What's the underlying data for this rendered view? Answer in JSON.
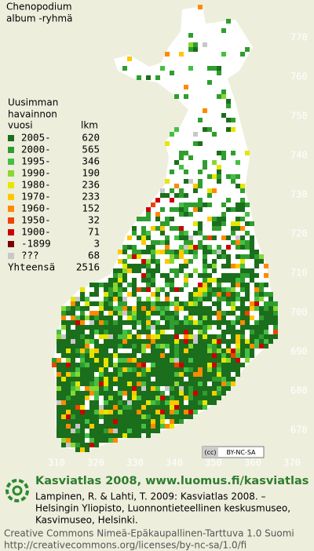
{
  "title": [
    "Chenopodium",
    "album -ryhmä"
  ],
  "legend": {
    "heading": [
      "Uusimman",
      "havainnon",
      "vuosi",
      "lkm"
    ],
    "rows": [
      {
        "period": "2005-",
        "count": 620,
        "color": "#1b6e1b"
      },
      {
        "period": "2000-",
        "count": 565,
        "color": "#2f9e2f"
      },
      {
        "period": "1995-",
        "count": 346,
        "color": "#44c044"
      },
      {
        "period": "1990-",
        "count": 190,
        "color": "#88d830"
      },
      {
        "period": "1980-",
        "count": 236,
        "color": "#e6e600"
      },
      {
        "period": "1970-",
        "count": 233,
        "color": "#ffc800"
      },
      {
        "period": "1960-",
        "count": 152,
        "color": "#ff8a00"
      },
      {
        "period": "1950-",
        "count": 32,
        "color": "#ee4400"
      },
      {
        "period": "1900-",
        "count": 71,
        "color": "#cc0000"
      },
      {
        "period": "-1899",
        "count": 3,
        "color": "#7a0000"
      },
      {
        "period": "???",
        "count": 68,
        "color": "#c8c8c8"
      }
    ],
    "total_label": "Yhteensä",
    "total": 2516
  },
  "y_labels": [
    770,
    760,
    750,
    740,
    730,
    720,
    710,
    700,
    690,
    680,
    670
  ],
  "x_labels": [
    310,
    320,
    330,
    340,
    350,
    360,
    370
  ],
  "badge": {
    "icon": "(cc)",
    "text": "BY-NC-SA"
  },
  "footer": {
    "heading": "Kasviatlas 2008, www.luomus.fi/kasviatlas",
    "citation": [
      "Lampinen, R. & Lahti, T. 2009: Kasviatlas 2008. –",
      "Helsingin Yliopisto, Luonnontieteellinen keskusmuseo,",
      "Kasvimuseo, Helsinki."
    ],
    "license": [
      "Creative Commons Nimeä-Epäkaupallinen-Tarttuva 1.0 Suomi",
      "http://creativecommons.org/licenses/by-nc-sa/1.0/fi"
    ]
  }
}
